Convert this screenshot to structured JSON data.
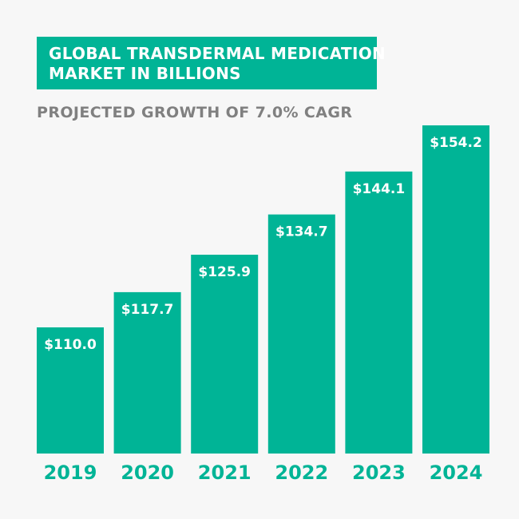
{
  "title_lines": [
    "GLOBAL TRANSDERMAL MEDICATION",
    "MARKET IN BILLIONS"
  ],
  "subtitle": "PROJECTED GROWTH OF 7.0% CAGR",
  "colors": {
    "accent": "#00b496",
    "subtitle": "#808080",
    "background": "#f7f7f7",
    "label": "#ffffff"
  },
  "chart_data": {
    "type": "bar",
    "title": "GLOBAL TRANSDERMAL MEDICATION MARKET IN BILLIONS",
    "subtitle": "PROJECTED GROWTH OF 7.0% CAGR",
    "categories": [
      "2019",
      "2020",
      "2021",
      "2022",
      "2023",
      "2024"
    ],
    "values": [
      110.0,
      117.7,
      125.9,
      134.7,
      144.1,
      154.2
    ],
    "value_labels": [
      "$110.0",
      "$117.7",
      "$125.9",
      "$134.7",
      "$144.1",
      "$154.2"
    ],
    "xlabel": "",
    "ylabel": "",
    "grid": false,
    "legend": "none"
  }
}
